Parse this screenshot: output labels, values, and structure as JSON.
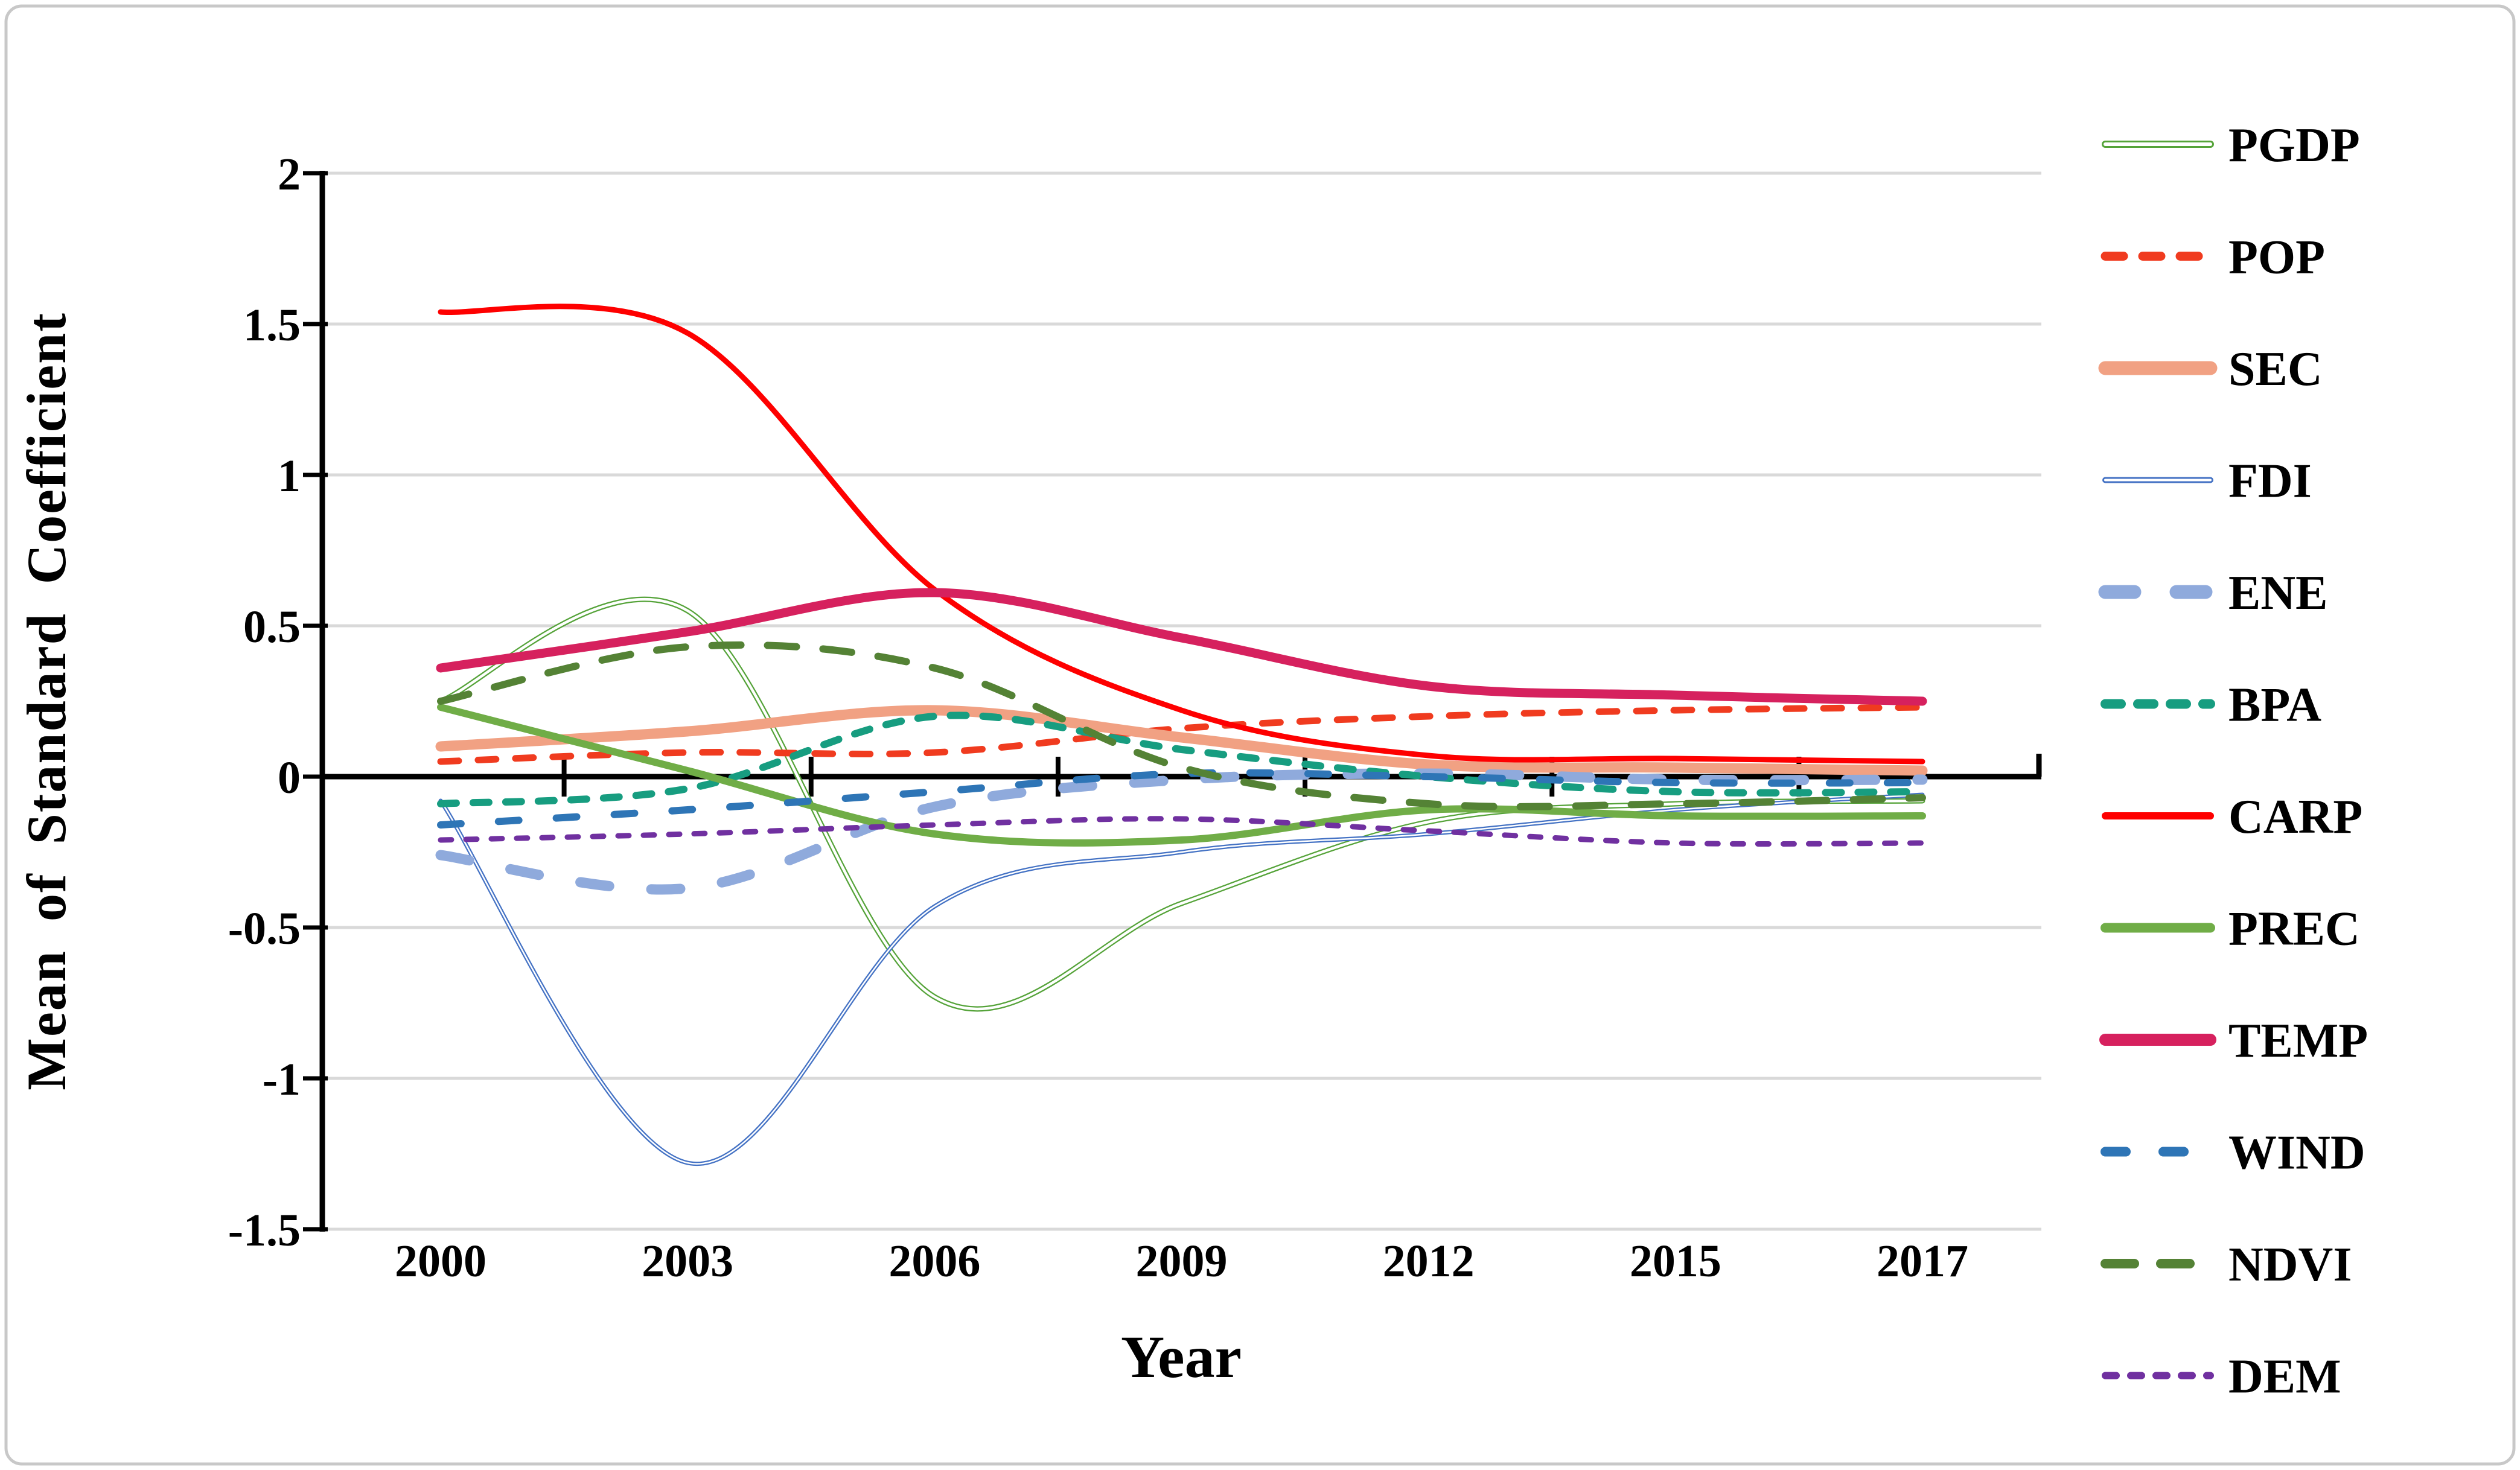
{
  "figure": {
    "background": "#ffffff",
    "border_color": "#c8c8c8",
    "gridline_color": "#d9d9d9",
    "axis_color": "#000000"
  },
  "chart_data": {
    "type": "line",
    "title": "",
    "xlabel": "Year",
    "ylabel": "Mean of Standard Coefficient",
    "x_tick_labels": [
      "2000",
      "2003",
      "2006",
      "2009",
      "2012",
      "2015",
      "2017"
    ],
    "y_tick_labels": [
      "2",
      "1.5",
      "1",
      "0.5",
      "0",
      "-0.5",
      "-1",
      "-1.5"
    ],
    "ylim": [
      -1.5,
      2
    ],
    "y_tick_step": 0.5,
    "grid": "horizontal-only",
    "smoothing": "spline",
    "legend_position": "right",
    "categories": [
      2000,
      2003,
      2006,
      2009,
      2012,
      2015,
      2017
    ],
    "series": [
      {
        "name": "PGDP",
        "color": "#55a339",
        "line": "double",
        "width": 9,
        "dash": "",
        "values": [
          0.25,
          0.55,
          -0.73,
          -0.42,
          -0.15,
          -0.09,
          -0.08
        ]
      },
      {
        "name": "POP",
        "color": "#f03b1f",
        "line": "dashed",
        "width": 11,
        "dash": "30 32",
        "values": [
          0.05,
          0.08,
          0.08,
          0.16,
          0.2,
          0.22,
          0.23
        ]
      },
      {
        "name": "SEC",
        "color": "#f1a183",
        "line": "solid",
        "width": 17,
        "dash": "",
        "values": [
          0.1,
          0.15,
          0.22,
          0.13,
          0.04,
          0.03,
          0.02
        ]
      },
      {
        "name": "FDI",
        "color": "#4472c4",
        "line": "double",
        "width": 7,
        "dash": "",
        "values": [
          -0.08,
          -1.28,
          -0.43,
          -0.25,
          -0.19,
          -0.11,
          -0.06
        ]
      },
      {
        "name": "ENE",
        "color": "#8faadc",
        "line": "dashed",
        "width": 17,
        "dash": "48 70",
        "values": [
          -0.26,
          -0.37,
          -0.1,
          -0.01,
          0.01,
          -0.01,
          -0.01
        ]
      },
      {
        "name": "BPA",
        "color": "#179d80",
        "line": "dashed",
        "width": 12,
        "dash": "26 28",
        "values": [
          -0.09,
          -0.04,
          0.2,
          0.09,
          0.0,
          -0.05,
          -0.05
        ]
      },
      {
        "name": "CARP",
        "color": "#fe0000",
        "line": "solid",
        "width": 9,
        "dash": "",
        "values": [
          1.54,
          1.47,
          0.62,
          0.22,
          0.07,
          0.06,
          0.05
        ]
      },
      {
        "name": "PREC",
        "color": "#70ad47",
        "line": "solid",
        "width": 12,
        "dash": "",
        "values": [
          0.23,
          0.02,
          -0.19,
          -0.21,
          -0.11,
          -0.13,
          -0.13
        ]
      },
      {
        "name": "TEMP",
        "color": "#d6215e",
        "line": "solid",
        "width": 15,
        "dash": "",
        "values": [
          0.36,
          0.48,
          0.61,
          0.46,
          0.3,
          0.27,
          0.25
        ]
      },
      {
        "name": "WIND",
        "color": "#2e75b6",
        "line": "dashed",
        "width": 12,
        "dash": "34 62",
        "values": [
          -0.16,
          -0.11,
          -0.05,
          0.01,
          0.0,
          -0.02,
          -0.02
        ]
      },
      {
        "name": "NDVI",
        "color": "#548235",
        "line": "dashed",
        "width": 12,
        "dash": "48 44",
        "values": [
          0.25,
          0.43,
          0.36,
          0.03,
          -0.09,
          -0.09,
          -0.07
        ]
      },
      {
        "name": "DEM",
        "color": "#7030a0",
        "line": "dashed",
        "width": 9,
        "dash": "18 24",
        "values": [
          -0.21,
          -0.19,
          -0.16,
          -0.14,
          -0.18,
          -0.22,
          -0.22
        ]
      }
    ]
  }
}
